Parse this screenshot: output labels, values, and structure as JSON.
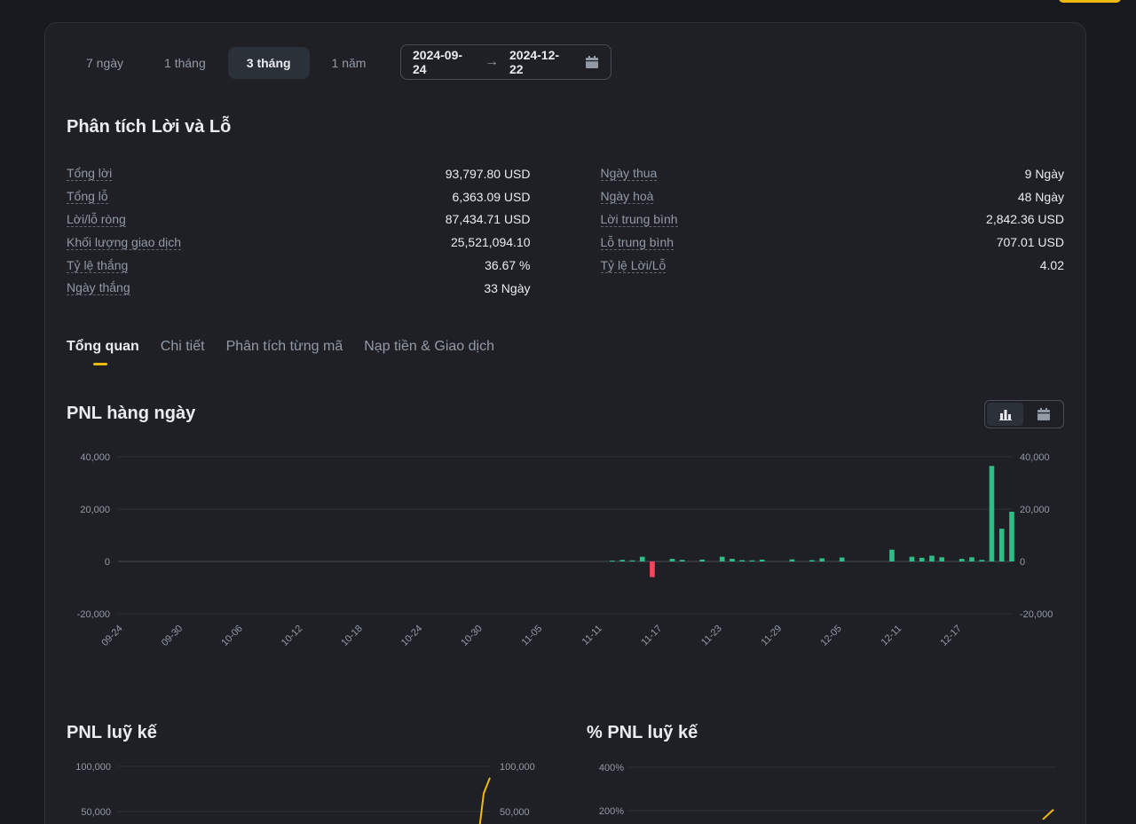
{
  "period_tabs": [
    "7 ngày",
    "1 tháng",
    "3 tháng",
    "1 năm"
  ],
  "date_range": {
    "start": "2024-09-24",
    "end": "2024-12-22"
  },
  "pnl_analysis": {
    "title": "Phân tích Lời và Lỗ",
    "left": [
      {
        "label": "Tổng lời",
        "value": "93,797.80 USD"
      },
      {
        "label": "Tổng lỗ",
        "value": "6,363.09 USD"
      },
      {
        "label": "Lời/lỗ ròng",
        "value": "87,434.71 USD"
      },
      {
        "label": "Khối lượng giao dịch",
        "value": "25,521,094.10"
      },
      {
        "label": "Tỷ lệ thắng",
        "value": "36.67 %"
      },
      {
        "label": "Ngày thắng",
        "value": "33 Ngày"
      }
    ],
    "right": [
      {
        "label": "Ngày thua",
        "value": "9 Ngày"
      },
      {
        "label": "Ngày hoà",
        "value": "48 Ngày"
      },
      {
        "label": "Lời trung bình",
        "value": "2,842.36 USD"
      },
      {
        "label": "Lỗ trung bình",
        "value": "707.01 USD"
      },
      {
        "label": "Tỷ lệ Lời/Lỗ",
        "value": "4.02"
      }
    ]
  },
  "section_tabs": [
    "Tổng quan",
    "Chi tiết",
    "Phân tích từng mã",
    "Nạp tiền & Giao dịch"
  ],
  "daily_pnl_title": "PNL hàng ngày",
  "cumulative_title": "PNL luỹ kế",
  "cumulative_pct_title": "% PNL luỹ kế",
  "colors": {
    "accent": "#f0b90b",
    "positive": "#2ebd85",
    "negative": "#f6465d"
  },
  "chart_data": [
    {
      "type": "bar",
      "title": "PNL hàng ngày",
      "ylim": [
        -20000,
        40000
      ],
      "yticks": [
        40000,
        20000,
        0,
        -20000
      ],
      "ytick_labels": [
        "40,000",
        "20,000",
        "0",
        "-20,000"
      ],
      "x_start": "2024-09-24",
      "x_end": "2024-12-22",
      "xtick_labels": [
        "09-24",
        "09-30",
        "10-06",
        "10-12",
        "10-18",
        "10-24",
        "10-30",
        "11-05",
        "11-11",
        "11-17",
        "11-23",
        "11-29",
        "12-05",
        "12-11",
        "12-17"
      ],
      "points": [
        [
          "2024-11-12",
          300
        ],
        [
          "2024-11-13",
          600
        ],
        [
          "2024-11-14",
          400
        ],
        [
          "2024-11-15",
          1800
        ],
        [
          "2024-11-16",
          -6000
        ],
        [
          "2024-11-18",
          1000
        ],
        [
          "2024-11-19",
          600
        ],
        [
          "2024-11-21",
          700
        ],
        [
          "2024-11-23",
          1800
        ],
        [
          "2024-11-24",
          1000
        ],
        [
          "2024-11-25",
          500
        ],
        [
          "2024-11-26",
          400
        ],
        [
          "2024-11-27",
          700
        ],
        [
          "2024-11-30",
          800
        ],
        [
          "2024-12-02",
          500
        ],
        [
          "2024-12-03",
          1200
        ],
        [
          "2024-12-05",
          1500
        ],
        [
          "2024-12-10",
          4500
        ],
        [
          "2024-12-12",
          1800
        ],
        [
          "2024-12-13",
          1400
        ],
        [
          "2024-12-14",
          2200
        ],
        [
          "2024-12-15",
          1600
        ],
        [
          "2024-12-17",
          1000
        ],
        [
          "2024-12-18",
          1600
        ],
        [
          "2024-12-19",
          600
        ],
        [
          "2024-12-20",
          36500
        ],
        [
          "2024-12-21",
          12500
        ],
        [
          "2024-12-22",
          19000
        ]
      ]
    },
    {
      "type": "line",
      "title": "PNL luỹ kế",
      "ylim": [
        0,
        100000
      ],
      "yticks": [
        100000,
        50000
      ],
      "ytick_labels": [
        "100,000",
        "50,000"
      ],
      "series": [
        {
          "values": [
            30000,
            70000,
            87434
          ]
        }
      ]
    },
    {
      "type": "line",
      "title": "% PNL luỹ kế",
      "ylim": [
        0,
        400
      ],
      "yticks": [
        400,
        200
      ],
      "ytick_labels": [
        "400%",
        "200%"
      ],
      "series": [
        {
          "values": [
            160,
            205
          ]
        }
      ]
    }
  ]
}
